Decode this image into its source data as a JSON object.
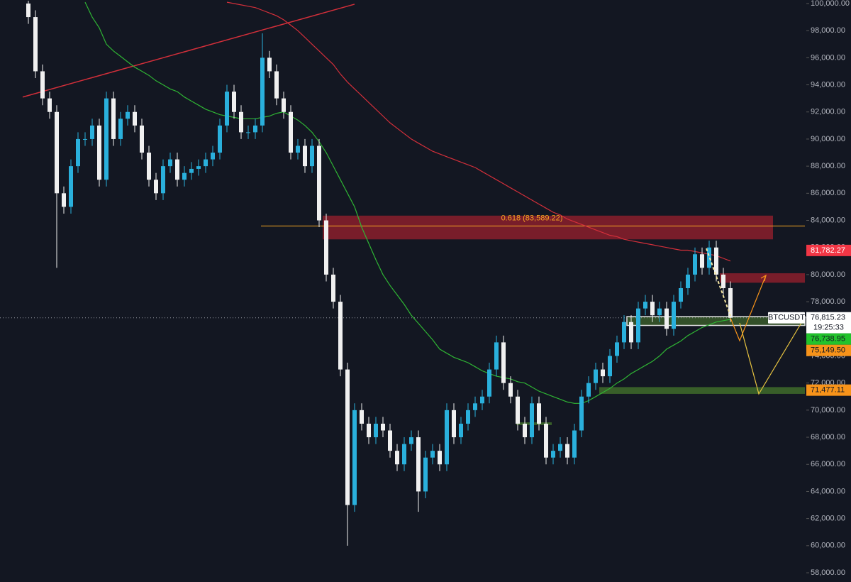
{
  "chart_data": {
    "type": "candlestick",
    "symbol": "BTCUSDT",
    "up_color": "#2ab0dc",
    "down_color": "#f0f0f0",
    "open": [
      100000,
      99000,
      95000,
      93000,
      92000,
      86000,
      85000,
      88000,
      90000,
      90000,
      91000,
      87000,
      93000,
      90000,
      91500,
      92000,
      91000,
      89000,
      87000,
      86000,
      88000,
      88500,
      87000,
      87500,
      87800,
      88000,
      88500,
      89000,
      91000,
      93500,
      92000,
      90500,
      90500,
      91000,
      96000,
      95000,
      93000,
      92000,
      89000,
      89500,
      88000,
      89500,
      84000,
      80000,
      78000,
      73000,
      63000,
      70000,
      69000,
      68000,
      69000,
      68500,
      67000,
      66000,
      67500,
      68000,
      64000,
      66500,
      67000,
      66000,
      70000,
      68000,
      69000,
      70000,
      70500,
      71000,
      73000,
      75000,
      72000,
      71000,
      69000,
      68000,
      70500,
      69000,
      66500,
      67000,
      67500,
      66500,
      68500,
      71000,
      72000,
      73000,
      72500,
      74000,
      75000,
      76500,
      75000,
      77500,
      78000,
      77000,
      77500,
      76000,
      78000,
      79000,
      80000,
      81500,
      80500,
      82000,
      80000,
      79000
    ],
    "high": [
      100200,
      99500,
      95500,
      93500,
      92500,
      86500,
      88500,
      90500,
      90500,
      91500,
      91500,
      93500,
      93500,
      92000,
      92500,
      92500,
      91500,
      89500,
      87500,
      88500,
      89000,
      89000,
      88000,
      88300,
      88500,
      89000,
      89500,
      91500,
      94000,
      94000,
      92500,
      91000,
      91500,
      97800,
      96500,
      95500,
      93500,
      92500,
      90000,
      90000,
      90000,
      90000,
      84500,
      80500,
      78500,
      73500,
      70500,
      70500,
      69500,
      69500,
      69500,
      69000,
      67500,
      68000,
      68500,
      68500,
      67000,
      67500,
      67500,
      70500,
      70500,
      69500,
      70500,
      71000,
      71500,
      73500,
      75500,
      75500,
      72500,
      71500,
      69500,
      71000,
      71000,
      69500,
      67500,
      68000,
      68000,
      69000,
      71500,
      72500,
      73500,
      73500,
      74500,
      75500,
      77000,
      77000,
      78000,
      78500,
      78500,
      78000,
      78000,
      78500,
      79500,
      80500,
      82000,
      82000,
      82500,
      82500,
      80500,
      79500
    ],
    "low": [
      98500,
      94500,
      92500,
      91500,
      80500,
      84500,
      84500,
      87500,
      89500,
      89500,
      86500,
      86500,
      89500,
      89500,
      91000,
      90500,
      88500,
      86500,
      85500,
      85500,
      87500,
      86500,
      86500,
      87000,
      87300,
      87500,
      88000,
      88500,
      90500,
      91500,
      90000,
      90000,
      90000,
      90500,
      94500,
      92500,
      91500,
      88500,
      88500,
      87500,
      87500,
      83500,
      79500,
      77500,
      72500,
      60000,
      62500,
      68500,
      67500,
      67500,
      68000,
      66500,
      65500,
      65500,
      67000,
      62500,
      63500,
      66000,
      65500,
      65500,
      67500,
      67500,
      68500,
      69500,
      70000,
      70500,
      72500,
      71500,
      70500,
      68500,
      67500,
      67500,
      68500,
      66000,
      66000,
      66500,
      66000,
      66000,
      68000,
      70500,
      71500,
      72000,
      72000,
      73500,
      74500,
      74500,
      74500,
      77000,
      76500,
      76500,
      75500,
      75500,
      77500,
      78500,
      79500,
      80000,
      80000,
      79500,
      78500,
      76500
    ],
    "close": [
      99000,
      95000,
      93000,
      92000,
      86000,
      85000,
      88000,
      90000,
      90000,
      91000,
      87000,
      93000,
      90000,
      91500,
      92000,
      91000,
      89000,
      87000,
      86000,
      88000,
      88500,
      87000,
      87500,
      87800,
      88000,
      88500,
      89000,
      91000,
      93500,
      92000,
      90500,
      90500,
      91000,
      96000,
      95000,
      93000,
      92000,
      89000,
      89500,
      88000,
      89500,
      84000,
      80000,
      78000,
      73000,
      63000,
      70000,
      69000,
      68000,
      69000,
      68500,
      67000,
      66000,
      67500,
      68000,
      64000,
      66500,
      67000,
      66000,
      70000,
      68000,
      69000,
      70000,
      70500,
      71000,
      73000,
      75000,
      72000,
      71000,
      69000,
      68000,
      70500,
      69000,
      66500,
      67000,
      67500,
      66500,
      68500,
      71000,
      72000,
      73000,
      72500,
      74000,
      75000,
      76500,
      75000,
      77500,
      78000,
      77000,
      77500,
      76000,
      78000,
      79000,
      80000,
      81500,
      80500,
      82000,
      80000,
      79000,
      76815.23
    ],
    "ma_lines": [
      {
        "color": "#d32f3a",
        "values": [
          null,
          null,
          null,
          null,
          null,
          null,
          null,
          null,
          null,
          null,
          null,
          null,
          null,
          null,
          null,
          null,
          null,
          null,
          null,
          null,
          null,
          null,
          null,
          null,
          null,
          null,
          null,
          null,
          100100,
          100000,
          99900,
          99800,
          99700,
          99500,
          99300,
          99100,
          98800,
          98400,
          98000,
          97500,
          97000,
          96500,
          96000,
          95500,
          94800,
          94200,
          93700,
          93200,
          92700,
          92200,
          91700,
          91200,
          90800,
          90400,
          90000,
          89700,
          89400,
          89100,
          88900,
          88700,
          88500,
          88300,
          88100,
          87900,
          87600,
          87300,
          87000,
          86700,
          86400,
          86100,
          85800,
          85500,
          85200,
          84900,
          84600,
          84400,
          84100,
          83900,
          83700,
          83500,
          83300,
          83100,
          82900,
          82800,
          82600,
          82500,
          82400,
          82300,
          82200,
          82100,
          82000,
          81900,
          81800,
          81800,
          81700,
          81600,
          81500,
          81400,
          81200,
          81000
        ]
      },
      {
        "color": "#2fb534",
        "values": [
          null,
          null,
          null,
          null,
          null,
          null,
          null,
          null,
          100100,
          99000,
          98200,
          97000,
          96500,
          96100,
          95700,
          95300,
          95000,
          94700,
          94300,
          94000,
          93700,
          93500,
          93100,
          92800,
          92500,
          92200,
          92000,
          91800,
          91700,
          91600,
          91500,
          91500,
          91500,
          91600,
          91700,
          91900,
          92000,
          91700,
          91400,
          91000,
          90500,
          89800,
          89000,
          88000,
          87000,
          86000,
          85000,
          83500,
          82300,
          81100,
          80000,
          79200,
          78500,
          77800,
          77000,
          76400,
          75800,
          75200,
          74500,
          74200,
          73900,
          73700,
          73500,
          73200,
          72900,
          72700,
          72500,
          72400,
          72300,
          72100,
          72000,
          71700,
          71400,
          71200,
          71000,
          70800,
          70600,
          70500,
          70500,
          70700,
          71000,
          71300,
          71600,
          72000,
          72300,
          72700,
          73000,
          73300,
          73600,
          74000,
          74500,
          74800,
          75100,
          75500,
          75800,
          76100,
          76300,
          76500,
          76600,
          76700
        ]
      }
    ],
    "trendline": {
      "color": "#d32f3a",
      "values": [
        93100,
        99950
      ]
    },
    "fib": {
      "value": 83589.22,
      "label": "0.618 (83,589.22)",
      "color": "#f5a623"
    },
    "zones": [
      {
        "top": 84350,
        "bottom": 82600,
        "color": "#8b1e2b"
      },
      {
        "top": 80100,
        "bottom": 79400,
        "color": "#8b1e2b"
      },
      {
        "top": 76900,
        "bottom": 76250,
        "color": "#3a5a2a"
      },
      {
        "top": 71700,
        "bottom": 71200,
        "color": "#3f6b2a"
      },
      {
        "top": 69100,
        "bottom": 68900,
        "color": "#3f6b2a"
      }
    ],
    "last_price": {
      "value": 76815.23,
      "label": "76,815.23"
    },
    "countdown": "19:25:33",
    "price_labels": [
      {
        "value": 81782.27,
        "label": "81,782.27",
        "color": "#f23645"
      },
      {
        "value": 76738.95,
        "label": "76,738.95",
        "color": "#22c32c"
      },
      {
        "value": 75149.5,
        "label": "75,149.50",
        "color": "#f7931a"
      },
      {
        "value": 71477.11,
        "label": "71,477.11",
        "color": "#f7931a"
      }
    ],
    "ylim": [
      57320,
      100260
    ],
    "yticks": [
      {
        "value": 58000,
        "label": "58,000.00"
      },
      {
        "value": 60000,
        "label": "60,000.00"
      },
      {
        "value": 62000,
        "label": "62,000.00"
      },
      {
        "value": 64000,
        "label": "64,000.00"
      },
      {
        "value": 66000,
        "label": "66,000.00"
      },
      {
        "value": 68000,
        "label": "68,000.00"
      },
      {
        "value": 70000,
        "label": "70,000.00"
      },
      {
        "value": 72000,
        "label": "72,000.00"
      },
      {
        "value": 74000,
        "label": "74,000.00"
      },
      {
        "value": 76000,
        "label": "76,000.00"
      },
      {
        "value": 78000,
        "label": "78,000.00"
      },
      {
        "value": 80000,
        "label": "80,000.00"
      },
      {
        "value": 82000,
        "label": "82,000.00"
      },
      {
        "value": 84000,
        "label": "84,000.00"
      },
      {
        "value": 86000,
        "label": "86,000.00"
      },
      {
        "value": 88000,
        "label": "88,000.00"
      },
      {
        "value": 90000,
        "label": "90,000.00"
      },
      {
        "value": 92000,
        "label": "92,000.00"
      },
      {
        "value": 94000,
        "label": "94,000.00"
      },
      {
        "value": 96000,
        "label": "96,000.00"
      },
      {
        "value": 98000,
        "label": "98,000.00"
      },
      {
        "value": 100000,
        "label": "100,000.00"
      }
    ],
    "grid": false
  }
}
